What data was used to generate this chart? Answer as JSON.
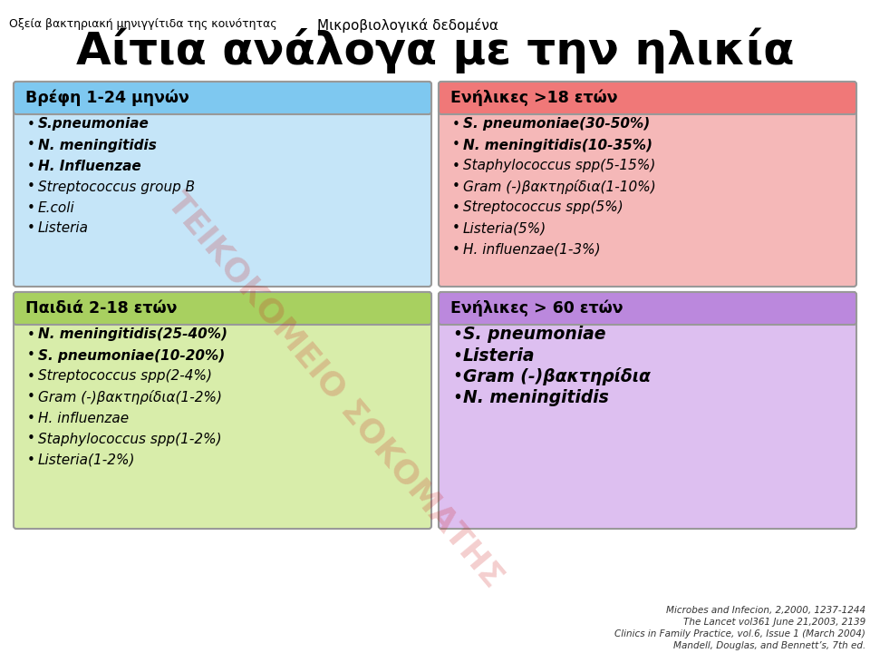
{
  "header_left": "Οξεία βακτηριακή μηνιγγίτιδα της κοινότητας",
  "header_right": "Μικροβιολογικά δεδομένα",
  "main_title": "Αίτια ανάλογα με την ηλικία",
  "box1_title": "Βρέφη 1-24 μηνών",
  "box1_bg": "#c5e5f8",
  "box1_title_bg": "#7ec8f0",
  "box1_items": [
    "S.pneumoniae",
    "N. meningitidis",
    "H. Influenzae",
    "Streptococcus group B",
    "E.coli",
    "Listeria"
  ],
  "box1_bold": [
    true,
    true,
    true,
    false,
    false,
    false
  ],
  "box2_title": "Παιδιά 2-18 ετών",
  "box2_bg": "#d8edaa",
  "box2_title_bg": "#a8d060",
  "box2_items": [
    "N. meningitidis(25-40%)",
    "S. pneumoniae(10-20%)",
    "Streptococcus spp(2-4%)",
    "Gram (-)βακτηρίδια(1-2%)",
    "H. influenzae",
    "Staphylococcus spp(1-2%)",
    "Listeria(1-2%)"
  ],
  "box2_bold": [
    true,
    true,
    false,
    false,
    false,
    false,
    false
  ],
  "box3_title": "Ενήλικες >18 ετών",
  "box3_bg": "#f5b8b8",
  "box3_title_bg": "#f07878",
  "box3_items": [
    "S. pneumoniae(30-50%)",
    "N. meningitidis(10-35%)",
    "Staphylococcus spp(5-15%)",
    "Gram (-)βακτηρίδια(1-10%)",
    "Streptococcus spp(5%)",
    "Listeria(5%)",
    "H. influenzae(1-3%)"
  ],
  "box3_bold": [
    true,
    true,
    false,
    false,
    false,
    false,
    false
  ],
  "box4_title": "Ενήλικες > 60 ετών",
  "box4_bg": "#ddbff0",
  "box4_title_bg": "#bb88dd",
  "box4_items": [
    "S. pneumoniae",
    "Listeria",
    "Gram (-)βακτηρίδια",
    "N. meningitidis"
  ],
  "box4_bold": [
    true,
    true,
    true,
    true
  ],
  "footer": [
    "Microbes and Infecion, 2,2000, 1237-1244",
    "The Lancet vol361 June 21,2003, 2139",
    "Clinics in Family Practice, vol.6, Issue 1 (March 2004)",
    "Mandell, Douglas, and Bennett’s, 7th ed."
  ],
  "watermark": "ΤΕΙΚΟΚΟΜΕΙΟ ΣΟΚΟΜΑΤΗΣ"
}
